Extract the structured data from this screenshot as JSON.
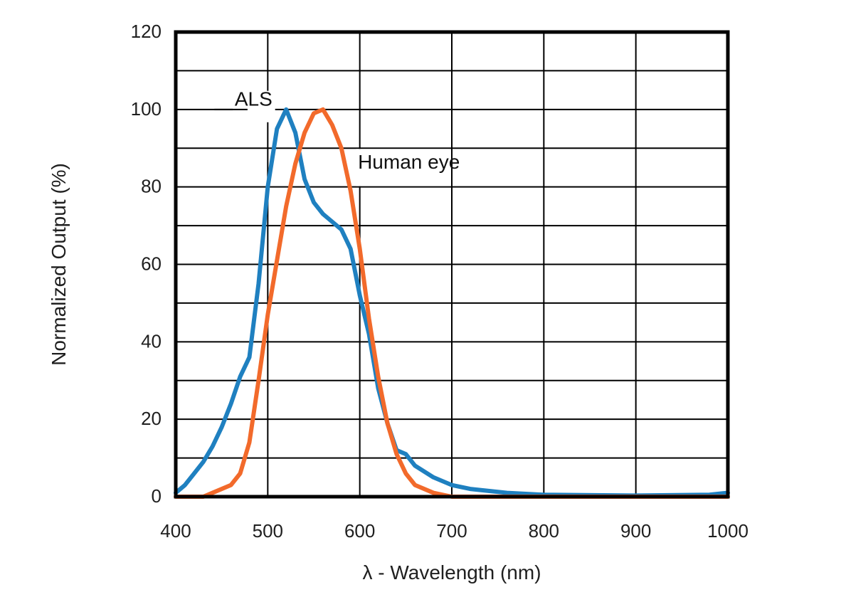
{
  "chart_data": {
    "type": "line",
    "title": "",
    "xlabel": "λ - Wavelength (nm)",
    "ylabel": "Normalized Output (%)",
    "xlim": [
      400,
      1000
    ],
    "ylim": [
      0,
      120
    ],
    "xticks": [
      400,
      500,
      600,
      700,
      800,
      900,
      1000
    ],
    "yticks": [
      0,
      20,
      40,
      60,
      80,
      100,
      120
    ],
    "grid": true,
    "colors": {
      "ALS": "#1f80c0",
      "Human eye": "#f26a2b",
      "grid": "#000000",
      "frame": "#000000",
      "text": "#1f1f1f"
    },
    "series": [
      {
        "name": "ALS",
        "points": [
          [
            400,
            1
          ],
          [
            410,
            3
          ],
          [
            420,
            6
          ],
          [
            430,
            9
          ],
          [
            440,
            13
          ],
          [
            450,
            18
          ],
          [
            460,
            24
          ],
          [
            470,
            31
          ],
          [
            480,
            36
          ],
          [
            490,
            55
          ],
          [
            500,
            80
          ],
          [
            510,
            95
          ],
          [
            520,
            100
          ],
          [
            530,
            94
          ],
          [
            540,
            82
          ],
          [
            550,
            76
          ],
          [
            560,
            73
          ],
          [
            570,
            71
          ],
          [
            580,
            69
          ],
          [
            590,
            64
          ],
          [
            600,
            52
          ],
          [
            610,
            42
          ],
          [
            620,
            28
          ],
          [
            630,
            19
          ],
          [
            640,
            12
          ],
          [
            650,
            11
          ],
          [
            660,
            8
          ],
          [
            680,
            5
          ],
          [
            700,
            3
          ],
          [
            720,
            2
          ],
          [
            740,
            1.5
          ],
          [
            760,
            1
          ],
          [
            800,
            0.5
          ],
          [
            900,
            0.3
          ],
          [
            980,
            0.5
          ],
          [
            1000,
            1
          ]
        ]
      },
      {
        "name": "Human eye",
        "points": [
          [
            400,
            0
          ],
          [
            430,
            0
          ],
          [
            440,
            1
          ],
          [
            460,
            3
          ],
          [
            470,
            6
          ],
          [
            480,
            14
          ],
          [
            490,
            30
          ],
          [
            500,
            47
          ],
          [
            510,
            61
          ],
          [
            520,
            75
          ],
          [
            530,
            86
          ],
          [
            540,
            94
          ],
          [
            550,
            99
          ],
          [
            560,
            100
          ],
          [
            570,
            96
          ],
          [
            580,
            90
          ],
          [
            590,
            79
          ],
          [
            600,
            64
          ],
          [
            610,
            46
          ],
          [
            620,
            31
          ],
          [
            630,
            19
          ],
          [
            640,
            11
          ],
          [
            650,
            6
          ],
          [
            660,
            3
          ],
          [
            680,
            1
          ],
          [
            700,
            0
          ],
          [
            1000,
            0
          ]
        ]
      }
    ],
    "annotations": [
      {
        "text": "ALS",
        "series": "ALS"
      },
      {
        "text": "Human eye",
        "series": "Human eye"
      }
    ]
  }
}
